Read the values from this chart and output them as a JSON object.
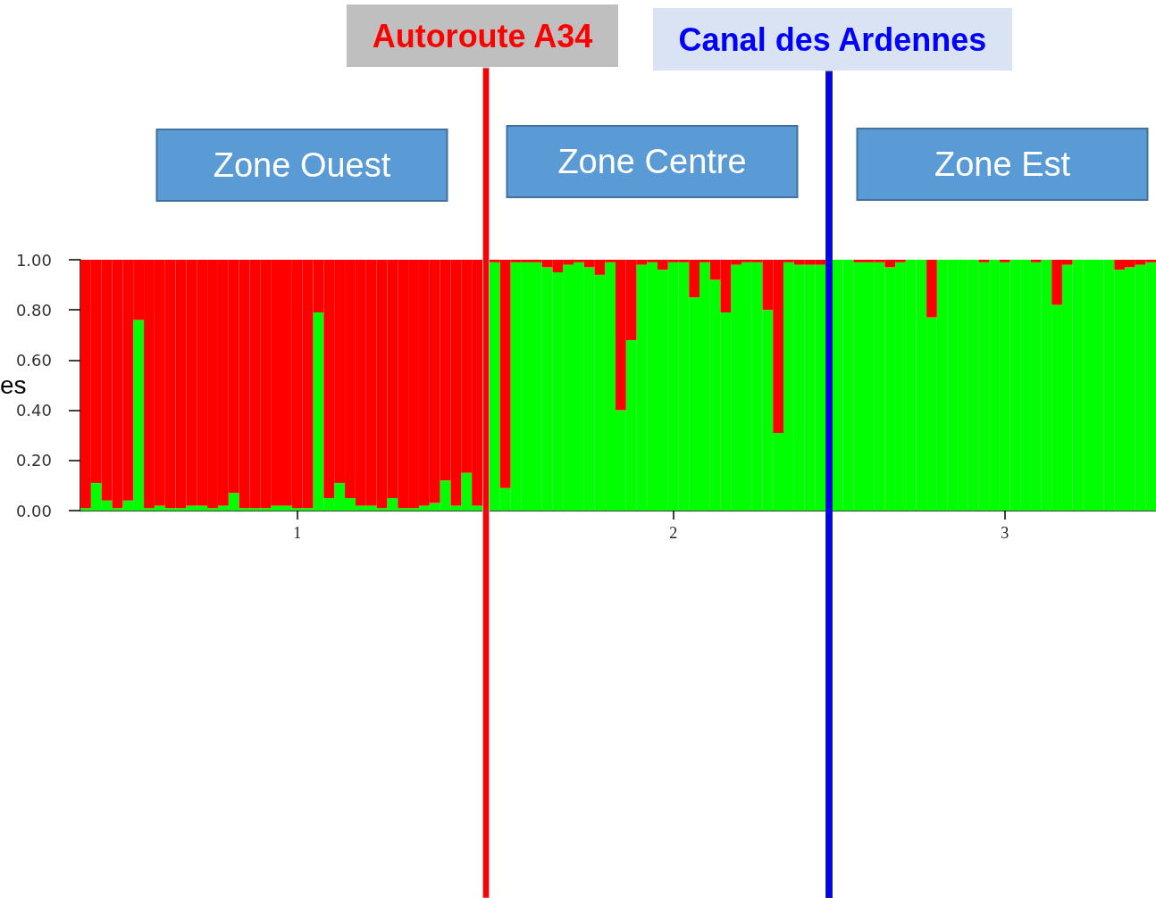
{
  "chart_data": [
    {
      "type": "bar",
      "stacked": true,
      "categories": [
        null,
        null,
        null,
        null,
        null,
        null,
        null,
        null,
        null,
        null,
        null,
        null,
        null,
        null,
        null,
        null,
        null,
        null,
        null,
        null,
        "1",
        null,
        null,
        null,
        null,
        null,
        null,
        null,
        null,
        null,
        null,
        null,
        null,
        null,
        null,
        null,
        null,
        null
      ],
      "series": [
        {
          "color": "#00ff00",
          "values": [
            0.01,
            0.11,
            0.04,
            0.01,
            0.04,
            0.76,
            0.01,
            0.02,
            0.01,
            0.01,
            0.02,
            0.02,
            0.01,
            0.02,
            0.07,
            0.01,
            0.01,
            0.01,
            0.02,
            0.02,
            0.01,
            0.01,
            0.79,
            0.05,
            0.11,
            0.05,
            0.02,
            0.02,
            0.01,
            0.05,
            0.01,
            0.01,
            0.02,
            0.03,
            0.12,
            0.02,
            0.15,
            0.02
          ]
        },
        {
          "color": "#ff0000",
          "values": [
            0.99,
            0.89,
            0.96,
            0.99,
            0.96,
            0.24,
            0.99,
            0.98,
            0.99,
            0.99,
            0.98,
            0.98,
            0.99,
            0.98,
            0.93,
            0.99,
            0.99,
            0.99,
            0.98,
            0.98,
            0.99,
            0.99,
            0.21,
            0.95,
            0.89,
            0.95,
            0.98,
            0.98,
            0.99,
            0.95,
            0.99,
            0.99,
            0.98,
            0.97,
            0.88,
            0.98,
            0.85,
            0.98
          ]
        }
      ],
      "ylim": [
        0,
        1
      ],
      "yticks": [
        {
          "value": 0,
          "label": "0.00"
        },
        {
          "value": 0.2,
          "label": "0.20"
        },
        {
          "value": 0.4,
          "label": "0.40"
        },
        {
          "value": 0.6,
          "label": "0.60"
        },
        {
          "value": 0.8,
          "label": "0.80"
        },
        {
          "value": 1,
          "label": "1.00"
        }
      ],
      "annotations": [
        "Autoroute A34",
        "Zone Ouest",
        "es"
      ]
    },
    {
      "type": "bar",
      "stacked": true,
      "categories": [
        null,
        null,
        null,
        null,
        null,
        null,
        null,
        null,
        null,
        null,
        null,
        null,
        null,
        null,
        null,
        null,
        null,
        "2",
        null,
        null,
        null,
        null,
        null,
        null,
        null,
        null,
        null,
        null,
        null,
        null,
        null,
        null
      ],
      "series": [
        {
          "color": "#00ff00",
          "values": [
            0.99,
            0.09,
            0.99,
            0.99,
            0.99,
            0.97,
            0.95,
            0.98,
            0.99,
            0.97,
            0.94,
            0.99,
            0.4,
            0.68,
            0.98,
            0.99,
            0.96,
            0.99,
            0.99,
            0.85,
            0.99,
            0.92,
            0.79,
            0.98,
            0.99,
            0.99,
            0.8,
            0.31,
            0.99,
            0.98,
            0.98,
            0.98
          ]
        },
        {
          "color": "#ff0000",
          "values": [
            0.01,
            0.91,
            0.01,
            0.01,
            0.01,
            0.03,
            0.05,
            0.02,
            0.01,
            0.03,
            0.06,
            0.01,
            0.6,
            0.32,
            0.02,
            0.01,
            0.04,
            0.01,
            0.01,
            0.15,
            0.01,
            0.08,
            0.21,
            0.02,
            0.01,
            0.01,
            0.2,
            0.69,
            0.01,
            0.02,
            0.02,
            0.02
          ]
        }
      ],
      "ylim": [
        0,
        1
      ],
      "tick_labels": "x",
      "annotations": [
        "Canal des Ardennes",
        "Zone Centre"
      ]
    },
    {
      "type": "bar",
      "stacked": true,
      "categories": [
        null,
        null,
        null,
        null,
        null,
        null,
        null,
        null,
        null,
        null,
        null,
        null,
        null,
        null,
        null,
        null,
        "3",
        null,
        null,
        null,
        null,
        null,
        null,
        null,
        null,
        null,
        null,
        null,
        null,
        null,
        null
      ],
      "series": [
        {
          "color": "#00ff00",
          "values": [
            1.0,
            1.0,
            0.99,
            0.99,
            0.99,
            0.97,
            0.99,
            1.0,
            1.0,
            0.77,
            1.0,
            1.0,
            1.0,
            1.0,
            0.99,
            1.0,
            0.99,
            1.0,
            1.0,
            0.99,
            1.0,
            0.82,
            0.98,
            1.0,
            1.0,
            1.0,
            1.0,
            0.96,
            0.97,
            0.98,
            0.99
          ]
        },
        {
          "color": "#ff0000",
          "values": [
            0,
            0,
            0.01,
            0.01,
            0.01,
            0.03,
            0.01,
            0,
            0,
            0.23,
            0,
            0,
            0,
            0,
            0.01,
            0,
            0.01,
            0,
            0,
            0.01,
            0,
            0.18,
            0.02,
            0,
            0,
            0,
            0,
            0.04,
            0.03,
            0.02,
            0.01
          ]
        }
      ],
      "ylim": [
        0,
        1
      ],
      "tick_labels": "x",
      "annotations": [
        "Zone Est"
      ]
    }
  ]
}
